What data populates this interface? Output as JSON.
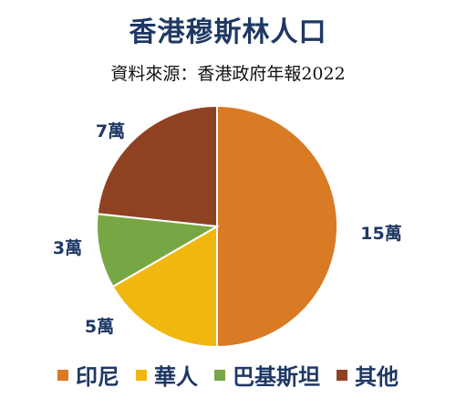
{
  "chart_data": {
    "type": "pie",
    "title": "香港穆斯林人口",
    "subtitle": "資料來源：香港政府年報2022",
    "slices": [
      {
        "name": "印尼",
        "value": 15,
        "label": "15萬",
        "color": "#d97a25"
      },
      {
        "name": "華人",
        "value": 5,
        "label": "5萬",
        "color": "#f0b70f"
      },
      {
        "name": "巴基斯坦",
        "value": 3,
        "label": "3萬",
        "color": "#77a744"
      },
      {
        "name": "其他",
        "value": 7,
        "label": "7萬",
        "color": "#8f4221"
      }
    ],
    "legend_position": "bottom"
  }
}
